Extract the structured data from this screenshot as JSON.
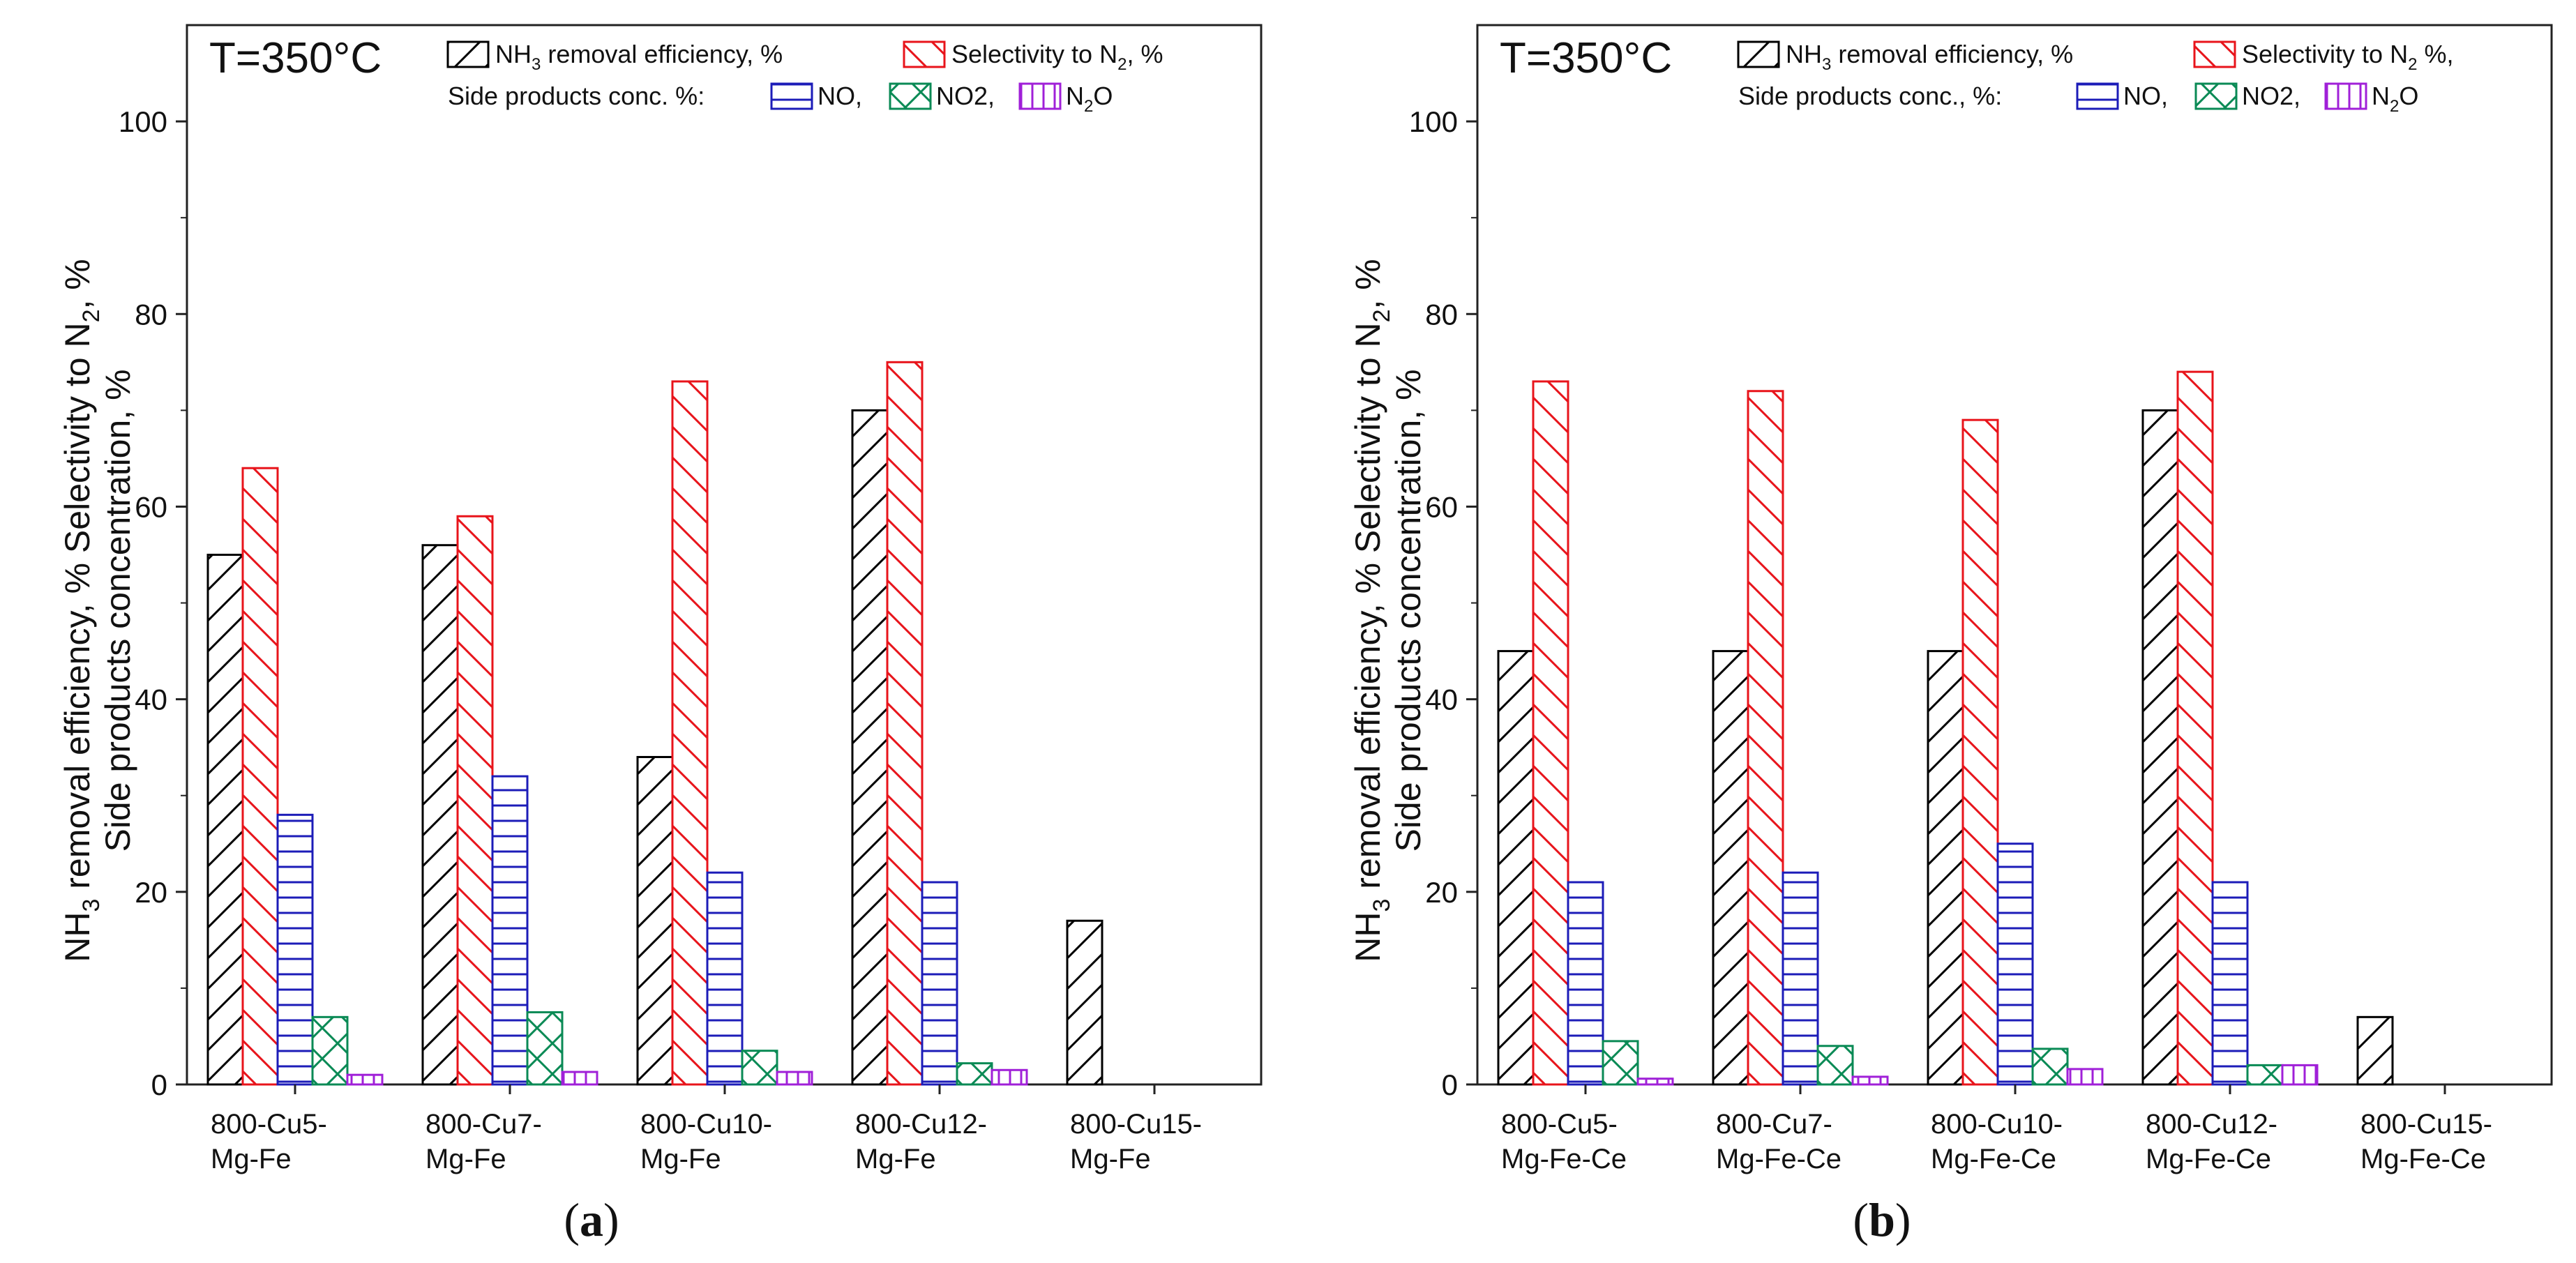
{
  "chart_data": [
    {
      "type": "bar",
      "panel_label": "(a)",
      "annotation": "T=350°C",
      "ylabel_line1": "NH3 removal efficiency, %  Selectivity to N2, %",
      "ylabel_line2": "Side products concentration, %",
      "ylim": [
        0,
        110
      ],
      "yticks": [
        0,
        20,
        40,
        60,
        80,
        100
      ],
      "categories": [
        [
          "800-Cu5-",
          "Mg-Fe"
        ],
        [
          "800-Cu7-",
          "Mg-Fe"
        ],
        [
          "800-Cu10-",
          "Mg-Fe"
        ],
        [
          "800-Cu12-",
          "Mg-Fe"
        ],
        [
          "800-Cu15-",
          "Mg-Fe"
        ]
      ],
      "legend": {
        "nh3": "NH3 removal efficiency, %",
        "sel": "Selectivity to N2, %",
        "side_label": "Side products conc. %:",
        "no": "NO,",
        "no2": "NO2,",
        "n2o": "N2O"
      },
      "series": [
        {
          "key": "nh3",
          "name": "NH3 removal efficiency, %",
          "color": "#000000",
          "pattern": "diag-up",
          "values": [
            55,
            56,
            34,
            70,
            17
          ]
        },
        {
          "key": "sel",
          "name": "Selectivity to N2, %",
          "color": "#e8141b",
          "pattern": "diag-down",
          "values": [
            64,
            59,
            73,
            75,
            null
          ]
        },
        {
          "key": "no",
          "name": "NO",
          "color": "#1c1cb8",
          "pattern": "horizontal",
          "values": [
            28,
            32,
            22,
            21,
            null
          ]
        },
        {
          "key": "no2",
          "name": "NO2",
          "color": "#0a8a55",
          "pattern": "cross",
          "values": [
            7,
            7.5,
            3.5,
            2.2,
            null
          ]
        },
        {
          "key": "n2o",
          "name": "N2O",
          "color": "#a020d8",
          "pattern": "vertical",
          "values": [
            1,
            1.3,
            1.3,
            1.5,
            null
          ]
        }
      ]
    },
    {
      "type": "bar",
      "panel_label": "(b)",
      "annotation": "T=350°C",
      "ylabel_line1": "NH3 removal efficiency, %  Selectivity to N2, %",
      "ylabel_line2": "Side products concentration, %",
      "ylim": [
        0,
        110
      ],
      "yticks": [
        0,
        20,
        40,
        60,
        80,
        100
      ],
      "categories": [
        [
          "800-Cu5-",
          "Mg-Fe-Ce"
        ],
        [
          "800-Cu7-",
          "Mg-Fe-Ce"
        ],
        [
          "800-Cu10-",
          "Mg-Fe-Ce"
        ],
        [
          "800-Cu12-",
          "Mg-Fe-Ce"
        ],
        [
          "800-Cu15-",
          "Mg-Fe-Ce"
        ]
      ],
      "legend": {
        "nh3": "NH3 removal efficiency, %",
        "sel": "Selectivity to N2 %,",
        "side_label": "Side products conc., %:",
        "no": "NO,",
        "no2": "NO2,",
        "n2o": "N2O"
      },
      "series": [
        {
          "key": "nh3",
          "name": "NH3 removal efficiency, %",
          "color": "#000000",
          "pattern": "diag-up",
          "values": [
            45,
            45,
            45,
            70,
            7
          ]
        },
        {
          "key": "sel",
          "name": "Selectivity to N2 %",
          "color": "#e8141b",
          "pattern": "diag-down",
          "values": [
            73,
            72,
            69,
            74,
            null
          ]
        },
        {
          "key": "no",
          "name": "NO",
          "color": "#1c1cb8",
          "pattern": "horizontal",
          "values": [
            21,
            22,
            25,
            21,
            null
          ]
        },
        {
          "key": "no2",
          "name": "NO2",
          "color": "#0a8a55",
          "pattern": "cross",
          "values": [
            4.5,
            4,
            3.7,
            2,
            null
          ]
        },
        {
          "key": "n2o",
          "name": "N2O",
          "color": "#a020d8",
          "pattern": "vertical",
          "values": [
            0.6,
            0.8,
            1.6,
            2,
            null
          ]
        }
      ]
    }
  ]
}
